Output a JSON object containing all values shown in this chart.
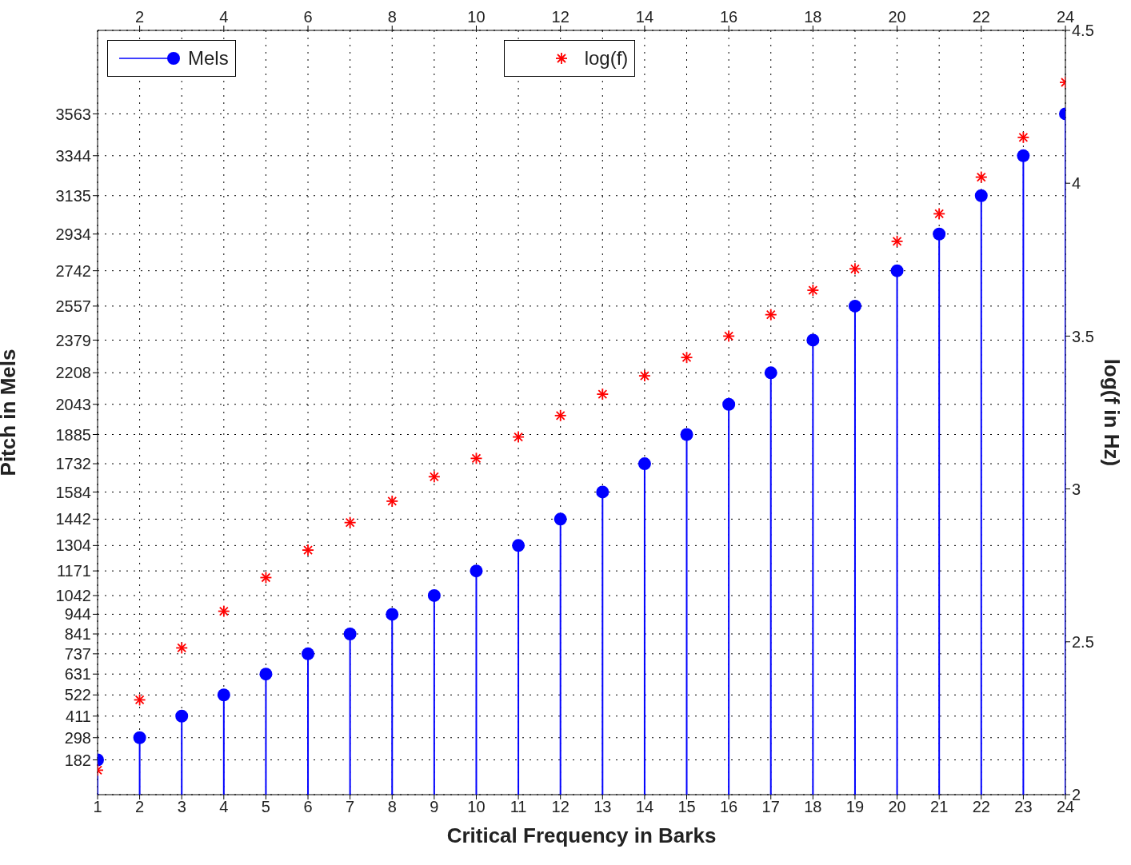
{
  "chart_data": {
    "type": "lollipop",
    "xlabel": "Critical Frequency in Barks",
    "ylabel": "Pitch in Mels",
    "y2label": "log(f in Hz)",
    "x": [
      1,
      2,
      3,
      4,
      5,
      6,
      7,
      8,
      9,
      10,
      11,
      12,
      13,
      14,
      15,
      16,
      17,
      18,
      19,
      20,
      21,
      22,
      23,
      24
    ],
    "series": [
      {
        "name": "Mels",
        "color": "#0000ff",
        "marker": "circle",
        "values": [
          182,
          298,
          411,
          522,
          631,
          737,
          841,
          944,
          1042,
          1171,
          1304,
          1442,
          1584,
          1732,
          1885,
          2043,
          2208,
          2379,
          2557,
          2742,
          2934,
          3135,
          3344,
          3563
        ]
      },
      {
        "name": "log(f)",
        "type": "scatter",
        "axis": "y2",
        "color": "#ff0000",
        "marker": "cross",
        "values": [
          2.08,
          2.31,
          2.48,
          2.6,
          2.71,
          2.8,
          2.89,
          2.96,
          3.04,
          3.1,
          3.17,
          3.24,
          3.31,
          3.37,
          3.43,
          3.5,
          3.57,
          3.65,
          3.72,
          3.81,
          3.9,
          4.02,
          4.15,
          4.33
        ]
      }
    ],
    "xlim": [
      1,
      24
    ],
    "xticks": [
      1,
      2,
      3,
      4,
      5,
      6,
      7,
      8,
      9,
      10,
      11,
      12,
      13,
      14,
      15,
      16,
      17,
      18,
      19,
      20,
      21,
      22,
      23,
      24
    ],
    "x2lim": [
      1,
      24
    ],
    "x2ticks": [
      2,
      4,
      6,
      8,
      10,
      12,
      14,
      16,
      18,
      20,
      22,
      24
    ],
    "ylim": [
      0,
      4000
    ],
    "yticks": [
      182,
      298,
      411,
      522,
      631,
      737,
      841,
      944,
      1042,
      1171,
      1304,
      1442,
      1584,
      1732,
      1885,
      2043,
      2208,
      2379,
      2557,
      2742,
      2934,
      3135,
      3344,
      3563
    ],
    "y2lim": [
      2,
      4.5
    ],
    "y2ticks": [
      2,
      2.5,
      3,
      3.5,
      4,
      4.5
    ],
    "grid": true,
    "legend": "top left"
  }
}
